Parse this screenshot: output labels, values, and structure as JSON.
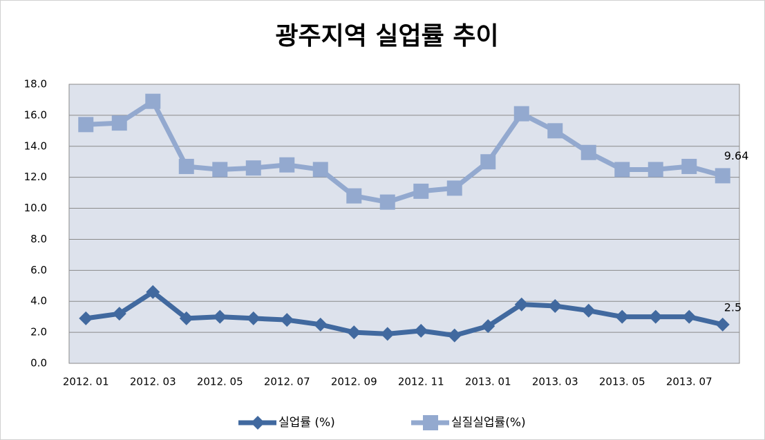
{
  "chart_data": {
    "type": "line",
    "title": "광주지역 실업률 추이",
    "categories": [
      "2012. 01",
      null,
      "2012. 03",
      null,
      "2012. 05",
      null,
      "2012. 07",
      null,
      "2012. 09",
      null,
      "2012. 11",
      null,
      "2013. 01",
      null,
      "2013. 03",
      null,
      "2013. 05",
      null,
      "2013. 07",
      null
    ],
    "series": [
      {
        "name": "실업률 (%)",
        "color": "#41699f",
        "marker": "diamond",
        "values": [
          2.9,
          3.2,
          4.6,
          2.9,
          3.0,
          2.9,
          2.8,
          2.5,
          2.0,
          1.9,
          2.1,
          1.8,
          2.4,
          3.8,
          3.7,
          3.4,
          3.0,
          3.0,
          3.0,
          2.5
        ],
        "value_labels": [
          null,
          null,
          null,
          null,
          null,
          null,
          null,
          null,
          null,
          null,
          null,
          null,
          null,
          null,
          null,
          null,
          null,
          null,
          null,
          "2.5"
        ]
      },
      {
        "name": "실질실업률(%)",
        "color": "#93a9cf",
        "marker": "square",
        "values": [
          15.4,
          15.5,
          16.9,
          12.7,
          12.5,
          12.6,
          12.8,
          12.5,
          10.8,
          10.4,
          11.1,
          11.3,
          13.0,
          16.1,
          15.0,
          13.6,
          12.5,
          12.5,
          12.7,
          12.1
        ]
      }
    ],
    "annotations": [
      "9.64"
    ],
    "ylim": [
      0,
      18
    ],
    "yticks": [
      {
        "value": 0,
        "label": "0.0"
      },
      {
        "value": 2,
        "label": "2.0"
      },
      {
        "value": 4,
        "label": "4.0"
      },
      {
        "value": 6,
        "label": "6.0"
      },
      {
        "value": 8,
        "label": "8.0"
      },
      {
        "value": 10,
        "label": "10.0"
      },
      {
        "value": 12,
        "label": "12.0"
      },
      {
        "value": 14,
        "label": "14.0"
      },
      {
        "value": 16,
        "label": "16.0"
      },
      {
        "value": 18,
        "label": "18.0"
      }
    ],
    "grid": true,
    "legend": "bottom"
  }
}
